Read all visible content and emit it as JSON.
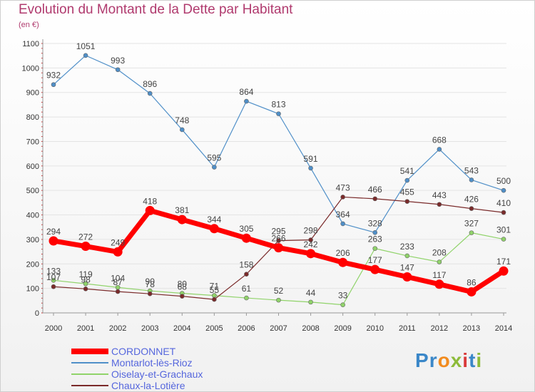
{
  "chart_data": {
    "type": "line",
    "title": "Evolution du Montant de la Dette par Habitant",
    "subtitle": "(en €)",
    "x": [
      "2000",
      "2001",
      "2002",
      "2003",
      "2004",
      "2005",
      "2006",
      "2007",
      "2008",
      "2009",
      "2010",
      "2011",
      "2012",
      "2013",
      "2014"
    ],
    "ylim": [
      0,
      1100
    ],
    "yticks": [
      0,
      100,
      200,
      300,
      400,
      500,
      600,
      700,
      800,
      900,
      1000,
      1100
    ],
    "grid": true,
    "legend_position": "bottom-left",
    "series": [
      {
        "name": "CORDONNET",
        "color": "#ff0000",
        "values": [
          294,
          272,
          249,
          418,
          381,
          344,
          305,
          266,
          242,
          206,
          177,
          147,
          117,
          86,
          171
        ]
      },
      {
        "name": "Montarlot-lès-Rioz",
        "color": "#4f8fc8",
        "values": [
          932,
          1051,
          993,
          896,
          748,
          595,
          864,
          813,
          591,
          364,
          328,
          541,
          668,
          543,
          500
        ]
      },
      {
        "name": "Oiselay-et-Grachaux",
        "color": "#90d36a",
        "values": [
          133,
          119,
          104,
          90,
          80,
          71,
          61,
          52,
          44,
          33,
          263,
          233,
          208,
          327,
          301
        ]
      },
      {
        "name": "Chaux-la-Lotière",
        "color": "#7a2a2a",
        "values": [
          107,
          98,
          87,
          78,
          68,
          55,
          158,
          295,
          298,
          473,
          466,
          455,
          443,
          426,
          410
        ]
      }
    ]
  },
  "brand": {
    "text": "Proxiti",
    "letters": [
      "P",
      "r",
      "o",
      "x",
      "i",
      "t",
      "i"
    ],
    "colors": [
      "#3a87c8",
      "#3a87c8",
      "#f28b1e",
      "#8dbb3a",
      "#d93b3b",
      "#3a87c8",
      "#8dbb3a"
    ]
  }
}
